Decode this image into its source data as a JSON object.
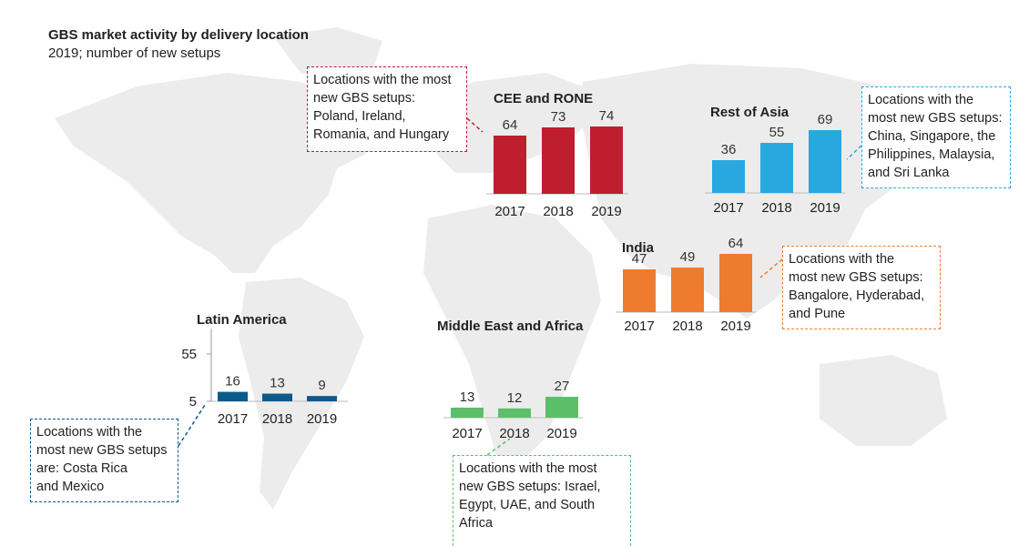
{
  "title": "GBS market activity by delivery location",
  "subtitle": "2019; number of new setups",
  "colors": {
    "cee": "#bf1e2e",
    "asia": "#29a8e0",
    "india": "#ef7b2f",
    "latam": "#0b5a8c",
    "mea": "#5bbf6a",
    "map": "#ececec"
  },
  "chart_data": [
    {
      "type": "bar",
      "title": "CEE and RONE",
      "categories": [
        "2017",
        "2018",
        "2019"
      ],
      "values": [
        64,
        73,
        74
      ],
      "color": "#bf1e2e"
    },
    {
      "type": "bar",
      "title": "Rest of Asia",
      "categories": [
        "2017",
        "2018",
        "2019"
      ],
      "values": [
        36,
        55,
        69
      ],
      "color": "#29a8e0"
    },
    {
      "type": "bar",
      "title": "India",
      "categories": [
        "2017",
        "2018",
        "2019"
      ],
      "values": [
        47,
        49,
        64
      ],
      "color": "#ef7b2f"
    },
    {
      "type": "bar",
      "title": "Latin America",
      "categories": [
        "2017",
        "2018",
        "2019"
      ],
      "values": [
        16,
        13,
        9
      ],
      "color": "#0b5a8c",
      "ytick_labels": [
        "55",
        "5"
      ]
    },
    {
      "type": "bar",
      "title": "Middle East and Africa",
      "categories": [
        "2017",
        "2018",
        "2019"
      ],
      "values": [
        13,
        12,
        27
      ],
      "color": "#5bbf6a"
    }
  ],
  "callouts": {
    "cee": [
      "Locations with the most",
      "new GBS setups:",
      "Poland, Ireland,",
      "Romania, and Hungary"
    ],
    "asia": [
      "Locations with the",
      "most new GBS setups:",
      "China, Singapore, the",
      "Philippines, Malaysia,",
      "and Sri Lanka"
    ],
    "india": [
      "Locations with the",
      "most new GBS setups:",
      "Bangalore, Hyderabad,",
      "and Pune"
    ],
    "latam": [
      "Locations with the",
      "most new GBS setups",
      "are: Costa Rica",
      "and Mexico"
    ],
    "mea": [
      "Locations with the most",
      "new GBS setups: Israel,",
      "Egypt, UAE, and South",
      "Africa"
    ]
  }
}
